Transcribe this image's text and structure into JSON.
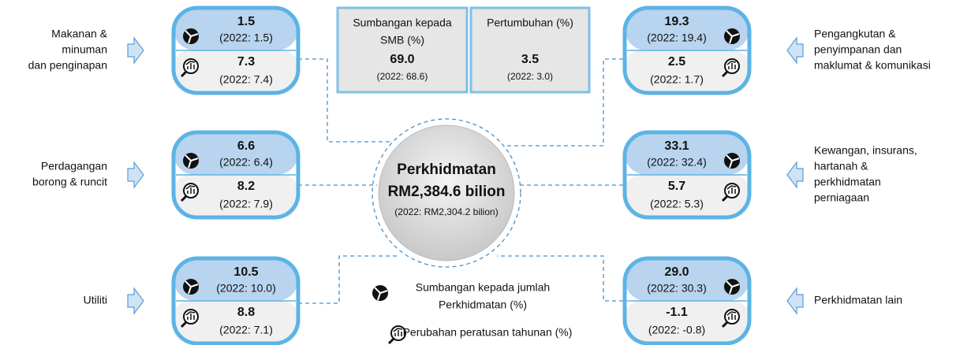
{
  "header": {
    "contribution": {
      "label_lines": [
        "Sumbangan kepada",
        "SMB (%)"
      ],
      "value": "69.0",
      "previous": "(2022: 68.6)"
    },
    "growth": {
      "label_lines": [
        "Pertumbuhan (%)"
      ],
      "value": "3.5",
      "previous": "(2022: 3.0)"
    }
  },
  "center": {
    "title": "Perkhidmatan",
    "value": "RM2,384.6 bilion",
    "previous": "(2022: RM2,304.2 bilion)"
  },
  "legend": {
    "share_lines": [
      "Sumbangan kepada jumlah",
      "Perkhidmatan (%)"
    ],
    "growth_lines": [
      "Perubahan peratusan tahunan (%)"
    ]
  },
  "sectors": [
    {
      "label_lines": [
        "Makanan &",
        "minuman",
        "dan penginapan"
      ],
      "share": "1.5",
      "share_previous": "(2022: 1.5)",
      "growth": "7.3",
      "growth_previous": "(2022: 7.4)"
    },
    {
      "label_lines": [
        "Perdagangan",
        "borong & runcit"
      ],
      "share": "6.6",
      "share_previous": "(2022: 6.4)",
      "growth": "8.2",
      "growth_previous": "(2022: 7.9)"
    },
    {
      "label_lines": [
        "Utiliti"
      ],
      "share": "10.5",
      "share_previous": "(2022: 10.0)",
      "growth": "8.8",
      "growth_previous": "(2022: 7.1)"
    },
    {
      "label_lines": [
        "Pengangkutan &",
        "penyimpanan dan",
        "maklumat & komunikasi"
      ],
      "share": "19.3",
      "share_previous": "(2022: 19.4)",
      "growth": "2.5",
      "growth_previous": "(2022: 1.7)"
    },
    {
      "label_lines": [
        "Kewangan, insurans,",
        "hartanah &",
        "perkhidmatan",
        "perniagaan"
      ],
      "share": "33.1",
      "share_previous": "(2022: 32.4)",
      "growth": "5.7",
      "growth_previous": "(2022: 5.3)"
    },
    {
      "label_lines": [
        "Perkhidmatan lain"
      ],
      "share": "29.0",
      "share_previous": "(2022: 30.3)",
      "growth": "-1.1",
      "growth_previous": "(2022: -0.8)"
    }
  ]
}
